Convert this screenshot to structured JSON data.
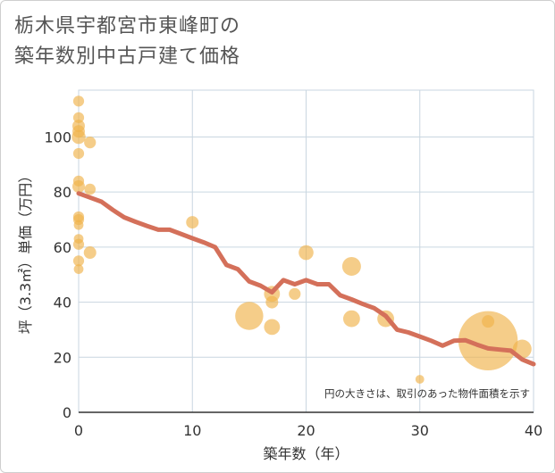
{
  "title_lines": [
    "栃木県宇都宮市東峰町の",
    "築年数別中古戸建て価格"
  ],
  "colors": {
    "bubble": "#f0b24a",
    "line": "#d4705a",
    "grid": "#c9d6e0",
    "axis": "#333333",
    "plot_background": "#ffffff"
  },
  "chart_data": {
    "type": "scatter",
    "xlabel": "築年数（年）",
    "ylabel": "坪（3.3㎡）単価（万円）",
    "xlim": [
      0,
      40
    ],
    "ylim": [
      0,
      117
    ],
    "xticks": [
      0,
      10,
      20,
      30,
      40
    ],
    "yticks": [
      0,
      20,
      40,
      60,
      80,
      100
    ],
    "grid": true,
    "note": "円の大きさは、取引のあった物件面積を示す",
    "bubbles": [
      {
        "x": 0,
        "y": 113,
        "size": 0.15
      },
      {
        "x": 0,
        "y": 107,
        "size": 0.15
      },
      {
        "x": 0,
        "y": 104,
        "size": 0.2
      },
      {
        "x": 0,
        "y": 102,
        "size": 0.2
      },
      {
        "x": 0,
        "y": 100,
        "size": 0.25
      },
      {
        "x": 0,
        "y": 94,
        "size": 0.15
      },
      {
        "x": 0,
        "y": 84,
        "size": 0.15
      },
      {
        "x": 0,
        "y": 82,
        "size": 0.2
      },
      {
        "x": 0,
        "y": 71,
        "size": 0.15
      },
      {
        "x": 0,
        "y": 70,
        "size": 0.15
      },
      {
        "x": 0,
        "y": 68,
        "size": 0.12
      },
      {
        "x": 0,
        "y": 63,
        "size": 0.12
      },
      {
        "x": 0,
        "y": 61,
        "size": 0.15
      },
      {
        "x": 0,
        "y": 55,
        "size": 0.15
      },
      {
        "x": 0,
        "y": 52,
        "size": 0.12
      },
      {
        "x": 1,
        "y": 98,
        "size": 0.18
      },
      {
        "x": 1,
        "y": 81,
        "size": 0.16
      },
      {
        "x": 1,
        "y": 58,
        "size": 0.2
      },
      {
        "x": 10,
        "y": 69,
        "size": 0.2
      },
      {
        "x": 15,
        "y": 35,
        "size": 1.0
      },
      {
        "x": 17,
        "y": 43,
        "size": 0.32
      },
      {
        "x": 17,
        "y": 40,
        "size": 0.2
      },
      {
        "x": 17,
        "y": 31,
        "size": 0.32
      },
      {
        "x": 19,
        "y": 43,
        "size": 0.18
      },
      {
        "x": 20,
        "y": 58,
        "size": 0.28
      },
      {
        "x": 24,
        "y": 53,
        "size": 0.45
      },
      {
        "x": 24,
        "y": 34,
        "size": 0.36
      },
      {
        "x": 27,
        "y": 34,
        "size": 0.36
      },
      {
        "x": 30,
        "y": 12,
        "size": 0.1
      },
      {
        "x": 36,
        "y": 33,
        "size": 0.2
      },
      {
        "x": 36,
        "y": 26,
        "size": 4.5
      },
      {
        "x": 39,
        "y": 23,
        "size": 0.45
      }
    ],
    "series": [
      {
        "type": "line",
        "x": [
          0,
          1,
          2,
          3,
          4,
          5,
          6,
          7,
          8,
          9,
          10,
          11,
          12,
          13,
          14,
          15,
          16,
          17,
          18,
          19,
          20,
          21,
          22,
          23,
          24,
          25,
          26,
          27,
          28,
          29,
          30,
          31,
          32,
          33,
          34,
          35,
          36,
          37,
          38,
          39,
          40
        ],
        "y": [
          79.5,
          78,
          76.5,
          73.5,
          70.8,
          69.2,
          67.7,
          66.3,
          66.3,
          64.8,
          63.2,
          61.7,
          60,
          53.5,
          52,
          47.5,
          46,
          43.6,
          48,
          46.5,
          48,
          46.5,
          46.5,
          42.5,
          41,
          39.3,
          37.8,
          35,
          30,
          29,
          27.5,
          26,
          24.2,
          26,
          26.2,
          24.6,
          23.2,
          22.8,
          22.4,
          19.2,
          17.5
        ]
      }
    ]
  }
}
